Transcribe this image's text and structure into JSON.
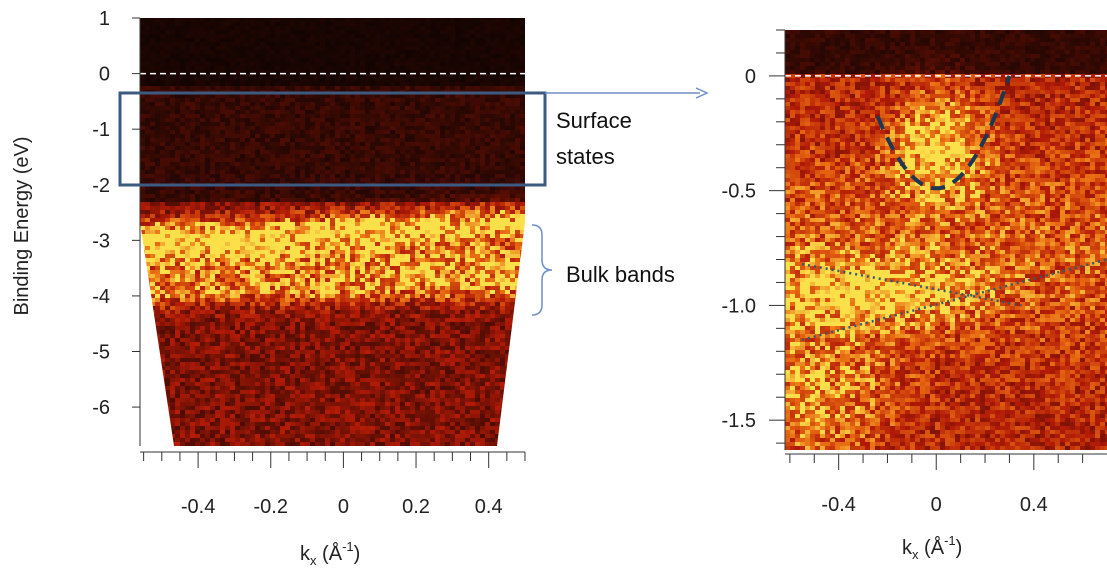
{
  "chart_data": [
    {
      "type": "heatmap",
      "title": "",
      "ylabel": "Binding Energy (eV)",
      "xlabel_main": "k",
      "xlabel_sub": "x",
      "xlabel_unit": " (Å",
      "xlabel_unit_sup": "-1",
      "xlabel_close": ")",
      "xlim": [
        -0.56,
        0.5
      ],
      "ylim": [
        -6.7,
        1.0
      ],
      "xticks": [
        -0.4,
        -0.2,
        0,
        0.2,
        0.4
      ],
      "xtick_labels": [
        "-0.4",
        "-0.2",
        "0",
        "0.2",
        "0.4"
      ],
      "yticks": [
        1,
        0,
        -1,
        -2,
        -3,
        -4,
        -5,
        -6
      ],
      "ytick_labels": [
        "1",
        "0",
        "-1",
        "-2",
        "-3",
        "-4",
        "-5",
        "-6"
      ],
      "fermi_level": 0,
      "colormap": "black-red-yellow",
      "bright_bands_eV": [
        -2.8,
        -3.3,
        -3.8
      ],
      "annotations": [
        {
          "label_lines": [
            "Surface",
            "states"
          ],
          "box_y": [
            -0.25,
            -1.9
          ]
        },
        {
          "label_lines": [
            "Bulk bands"
          ],
          "bracket_y": [
            -2.55,
            -4.25
          ]
        }
      ]
    },
    {
      "type": "heatmap",
      "title": "",
      "ylabel": "",
      "xlabel_main": "k",
      "xlabel_sub": "x",
      "xlabel_unit": " (Å",
      "xlabel_unit_sup": "-1",
      "xlabel_close": ")",
      "xlim": [
        -0.62,
        0.7
      ],
      "ylim": [
        -1.63,
        0.2
      ],
      "xticks": [
        -0.4,
        0,
        0.4
      ],
      "xtick_labels": [
        "-0.4",
        "0",
        "0.4"
      ],
      "yticks": [
        0,
        -0.5,
        -1.0,
        -1.5
      ],
      "ytick_labels": [
        "0",
        "-0.5",
        "-1.0",
        "-1.5"
      ],
      "fermi_level": 0,
      "colormap": "black-red-yellow",
      "overlays": {
        "parabola": {
          "vertex": [
            0,
            -0.49
          ],
          "x_range": [
            -0.24,
            0.3
          ]
        },
        "dotted_lines": [
          [
            [
              -0.55,
              -0.82
            ],
            [
              0.35,
              -1.0
            ]
          ],
          [
            [
              -0.55,
              -1.15
            ],
            [
              0.7,
              -0.8
            ]
          ]
        ]
      }
    }
  ],
  "colors": {
    "dark": "#0a0302",
    "red": "#b21a06",
    "yellow": "#fbe04a",
    "annotation_box": "#3d5a80",
    "bracket": "#6d8fc7",
    "overlay_dashed": "#1e3853",
    "overlay_dotted": "#2e5a70"
  }
}
